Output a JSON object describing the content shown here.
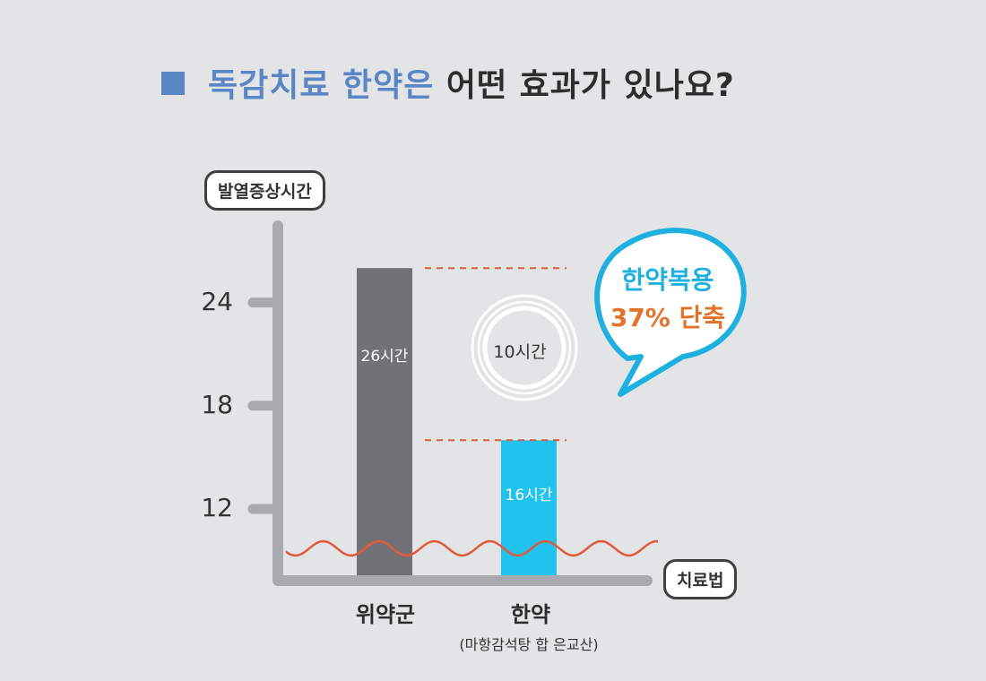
{
  "title": {
    "highlight": "독감치료 한약은",
    "rest": " 어떤 효과가 있나요?"
  },
  "colors": {
    "accent_blue": "#5b86c5",
    "bar_western": "#727276",
    "bar_herbal": "#20c3ee",
    "dashed_line": "#e05a3c",
    "bubble_border": "#1fb0e0",
    "bubble_line2": "#e0742a"
  },
  "chart_data": {
    "type": "bar",
    "ylabel": "발열증상시간",
    "xlabel": "치료법",
    "y_ticks": [
      12,
      18,
      24
    ],
    "ylim": [
      8.5,
      29
    ],
    "y_axis_break": true,
    "categories": [
      "위약군",
      "한약"
    ],
    "category_subtitles": [
      "",
      "(마항감석탕 합 은교산)"
    ],
    "values": [
      26,
      16
    ],
    "value_labels": [
      "26시간",
      "16시간"
    ],
    "difference_label": "10시간",
    "callout": {
      "line1": "한약복용",
      "line2": "37% 단축"
    }
  }
}
